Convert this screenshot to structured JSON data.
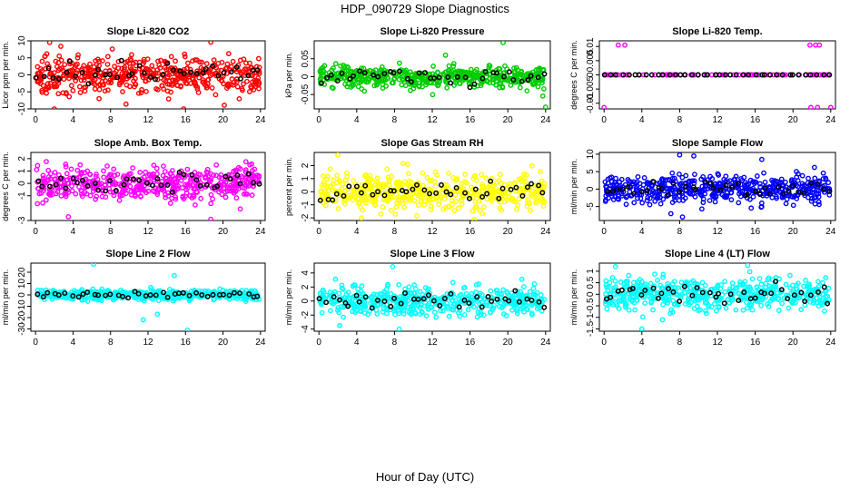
{
  "title": "HDP_090729  Slope Diagnostics",
  "xlabel": "Hour of Day (UTC)",
  "chart_data": [
    {
      "type": "scatter",
      "title": "Slope Li-820 CO2",
      "ylabel": "Licor ppm per min.",
      "color": "#ff0000",
      "xlim": [
        -0.5,
        24.5
      ],
      "ylim": [
        -10,
        10
      ],
      "xticks": [
        0,
        4,
        8,
        12,
        16,
        20,
        24
      ],
      "yticks": [
        -10,
        -5,
        0,
        5,
        10
      ],
      "spread": 3,
      "outliers": [
        {
          "x": 1.5,
          "y": 9.5
        },
        {
          "x": 2.0,
          "y": -10
        },
        {
          "x": 15.8,
          "y": -10
        },
        {
          "x": 18.7,
          "y": 9.6
        }
      ],
      "black_points": 40,
      "colored_points": 500
    },
    {
      "type": "scatter",
      "title": "Slope Li-820 Pressure",
      "ylabel": "kPa per min.",
      "color": "#00cc00",
      "xlim": [
        -0.5,
        24.5
      ],
      "ylim": [
        -0.09,
        0.1
      ],
      "xticks": [
        0,
        4,
        8,
        12,
        16,
        20,
        24
      ],
      "yticks": [
        -0.05,
        0.0,
        0.05
      ],
      "spread": 0.018,
      "outliers": [
        {
          "x": 19.5,
          "y": 0.095
        },
        {
          "x": 24.0,
          "y": -0.085
        },
        {
          "x": 13.4,
          "y": 0.06
        }
      ],
      "black_points": 40,
      "colored_points": 500
    },
    {
      "type": "scatter",
      "title": "Slope Li-820 Temp.",
      "ylabel": "degrees C per min.",
      "color": "#ff00ff",
      "xlim": [
        -0.5,
        24.5
      ],
      "ylim": [
        -0.012,
        0.012
      ],
      "xticks": [
        0,
        4,
        8,
        12,
        16,
        20,
        24
      ],
      "yticks": [
        -0.01,
        -0.005,
        0.0,
        0.005,
        0.01
      ],
      "spread": 0,
      "outliers": [
        {
          "x": 1.5,
          "y": 0.0105
        },
        {
          "x": 2.2,
          "y": 0.0105
        },
        {
          "x": 21.8,
          "y": 0.0105
        },
        {
          "x": 22.4,
          "y": 0.0105
        },
        {
          "x": 22.8,
          "y": 0.0105
        },
        {
          "x": 0.0,
          "y": -0.0115
        },
        {
          "x": 21.9,
          "y": -0.0115
        },
        {
          "x": 22.6,
          "y": -0.0115
        },
        {
          "x": 24.0,
          "y": -0.0115
        }
      ],
      "black_points": 40,
      "colored_points": 80
    },
    {
      "type": "scatter",
      "title": "Slope Amb. Box Temp.",
      "ylabel": "degrees C per min.",
      "color": "#ff00ff",
      "xlim": [
        -0.5,
        24.5
      ],
      "ylim": [
        -3,
        2.5
      ],
      "xticks": [
        0,
        4,
        8,
        12,
        16,
        20,
        24
      ],
      "yticks": [
        -3,
        -1,
        0,
        1,
        2
      ],
      "spread": 0.8,
      "outliers": [
        {
          "x": 18.7,
          "y": -2.9
        },
        {
          "x": 3.5,
          "y": -2.7
        }
      ],
      "black_points": 40,
      "colored_points": 500
    },
    {
      "type": "scatter",
      "title": "Slope Gas Stream RH",
      "ylabel": "percent per min.",
      "color": "#ffff00",
      "xlim": [
        -0.5,
        24.5
      ],
      "ylim": [
        -2.2,
        3
      ],
      "xticks": [
        0,
        4,
        8,
        12,
        16,
        20,
        24
      ],
      "yticks": [
        -2,
        -1,
        0,
        1,
        2
      ],
      "spread": 0.75,
      "outliers": [
        {
          "x": 2.0,
          "y": 2.8
        },
        {
          "x": 4.5,
          "y": -2.0
        }
      ],
      "black_points": 40,
      "colored_points": 500
    },
    {
      "type": "scatter",
      "title": "Slope Sample Flow",
      "ylabel": "ml/min per min.",
      "color": "#0000ff",
      "xlim": [
        -0.5,
        24.5
      ],
      "ylim": [
        -9,
        10.5
      ],
      "xticks": [
        0,
        4,
        8,
        12,
        16,
        20,
        24
      ],
      "yticks": [
        -5,
        0,
        5,
        10
      ],
      "spread": 2.3,
      "outliers": [
        {
          "x": 8.0,
          "y": 9.8
        },
        {
          "x": 9.5,
          "y": 9.5
        },
        {
          "x": 8.3,
          "y": -8.0
        },
        {
          "x": 16.7,
          "y": 8.5
        }
      ],
      "black_points": 40,
      "colored_points": 500
    },
    {
      "type": "scatter",
      "title": "Slope Line 2 Flow",
      "ylabel": "ml/min per min.",
      "color": "#00ffff",
      "xlim": [
        -0.5,
        24.5
      ],
      "ylim": [
        -32,
        28
      ],
      "xticks": [
        0,
        4,
        8,
        12,
        16,
        20,
        24
      ],
      "yticks": [
        -30,
        -20,
        -10,
        0,
        10,
        20
      ],
      "spread": 2.5,
      "outliers": [
        {
          "x": 6.2,
          "y": 27
        },
        {
          "x": 13.0,
          "y": -17
        },
        {
          "x": 16.2,
          "y": -31
        },
        {
          "x": 11.5,
          "y": -22
        },
        {
          "x": 14.8,
          "y": 17
        }
      ],
      "black_points": 40,
      "colored_points": 500
    },
    {
      "type": "scatter",
      "title": "Slope Line 3 Flow",
      "ylabel": "ml/min per min.",
      "color": "#00ffff",
      "xlim": [
        -0.5,
        24.5
      ],
      "ylim": [
        -4.3,
        5.4
      ],
      "xticks": [
        0,
        4,
        8,
        12,
        16,
        20,
        24
      ],
      "yticks": [
        -4,
        -2,
        0,
        2,
        4
      ],
      "spread": 1.2,
      "outliers": [
        {
          "x": 7.8,
          "y": 4.9
        },
        {
          "x": 8.5,
          "y": -4.0
        },
        {
          "x": 2.2,
          "y": -3.5
        }
      ],
      "black_points": 40,
      "colored_points": 500
    },
    {
      "type": "scatter",
      "title": "Slope Line 4 (LT) Flow",
      "ylabel": "ml/min per min.",
      "color": "#00ffff",
      "xlim": [
        -0.5,
        24.5
      ],
      "ylim": [
        -1.6,
        1.35
      ],
      "xticks": [
        0,
        4,
        8,
        12,
        16,
        20,
        24
      ],
      "yticks": [
        -1.5,
        -1.0,
        -0.5,
        0.0,
        0.5,
        1.0
      ],
      "spread": 0.4,
      "outliers": [
        {
          "x": 4.0,
          "y": -1.5
        },
        {
          "x": 15.2,
          "y": 1.25
        },
        {
          "x": 1.2,
          "y": 1.2
        }
      ],
      "black_points": 40,
      "colored_points": 500
    }
  ]
}
